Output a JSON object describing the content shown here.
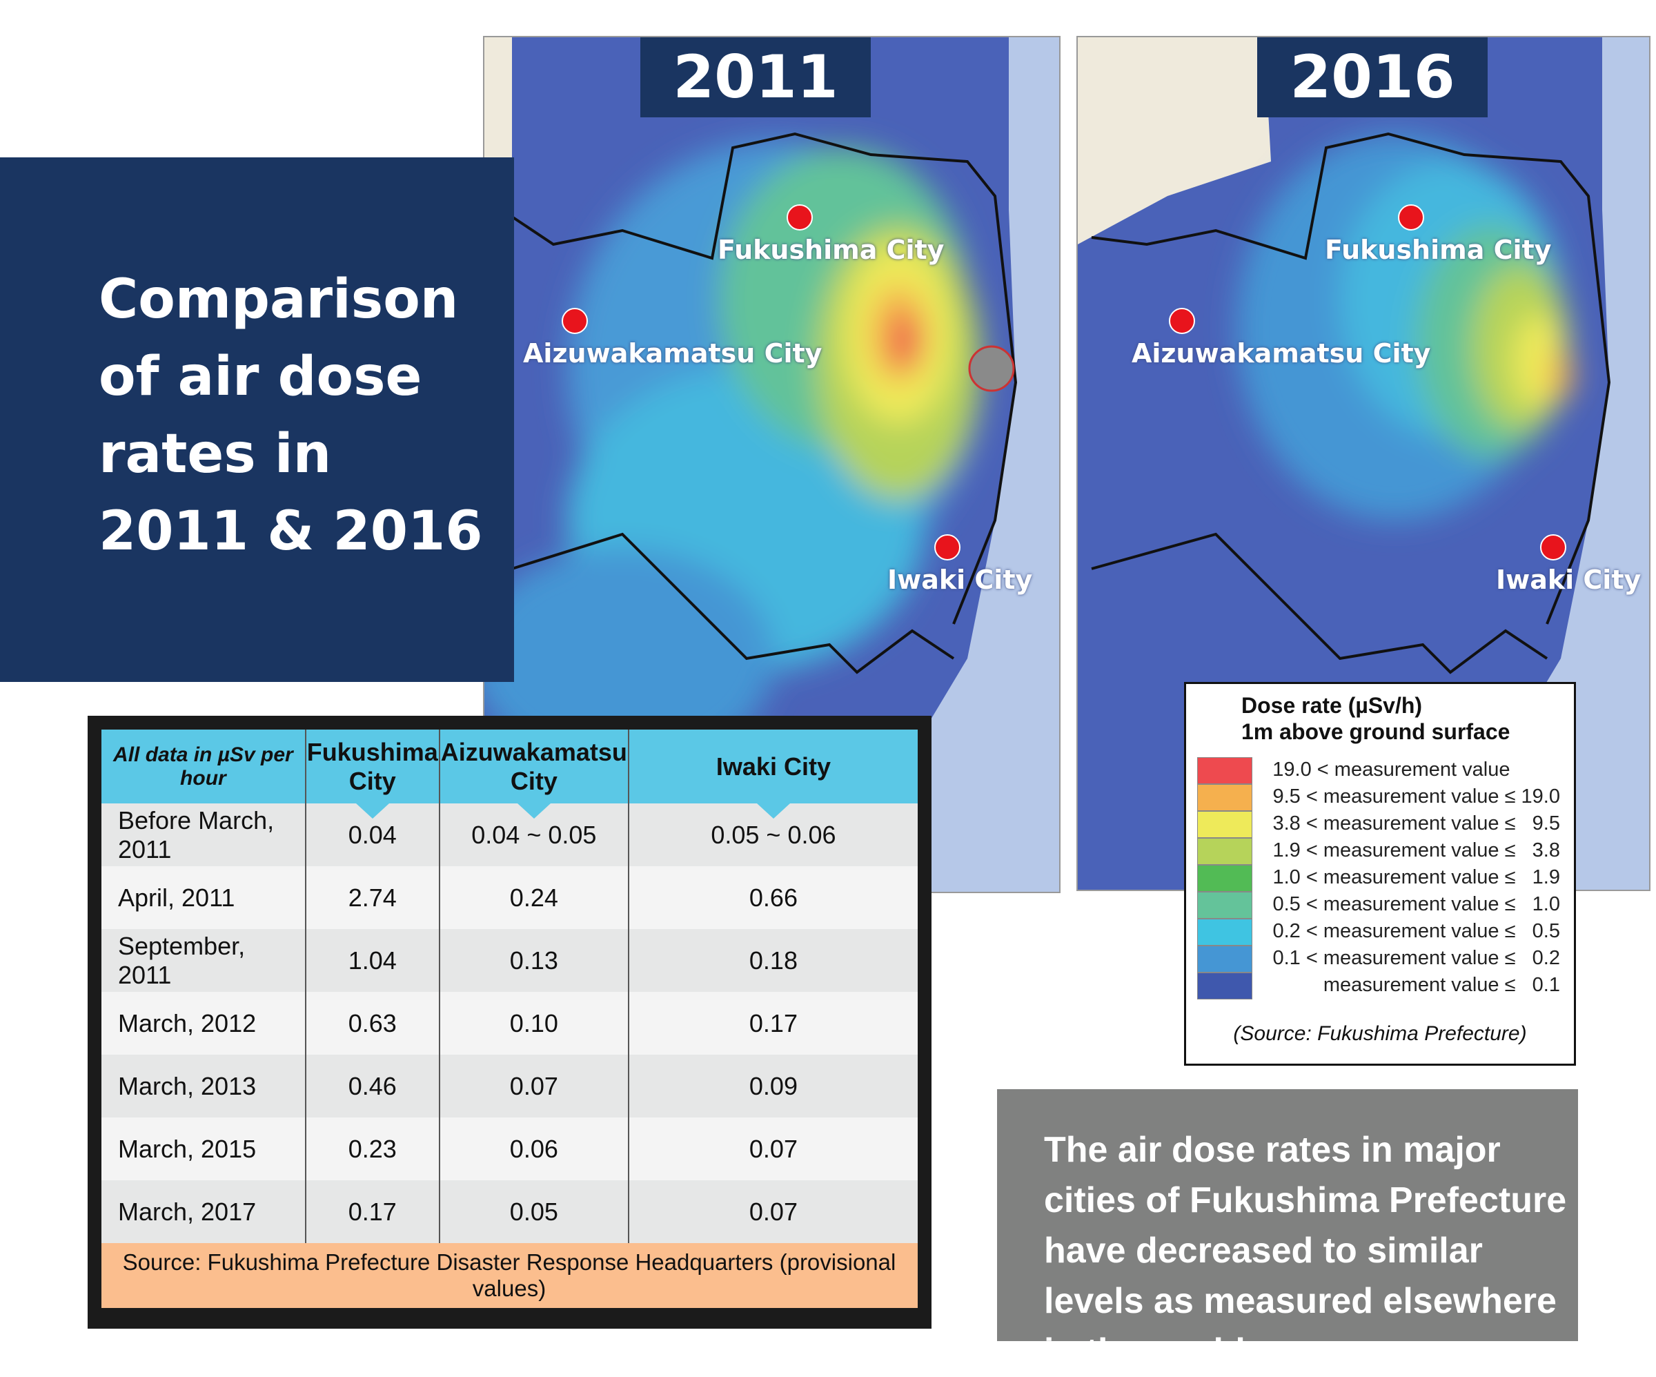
{
  "title": "Comparison of air dose rates in 2011 & 2016",
  "maps": [
    {
      "year": "2011",
      "cities": [
        "Fukushima City",
        "Aizuwakamatsu City",
        "Iwaki City"
      ]
    },
    {
      "year": "2016",
      "cities": [
        "Fukushima City",
        "Aizuwakamatsu City",
        "Iwaki City"
      ]
    }
  ],
  "legend": {
    "title_line1": "Dose rate (µSv/h)",
    "title_line2": "1m above ground surface",
    "items": [
      {
        "label": "19.0 < measurement value         ",
        "color": "#ee4a4f"
      },
      {
        "label": "9.5 < measurement value ≤ 19.0",
        "color": "#f5b04e"
      },
      {
        "label": "3.8 < measurement value ≤   9.5",
        "color": "#eeea5a"
      },
      {
        "label": "1.9 < measurement value ≤   3.8",
        "color": "#b6d35a"
      },
      {
        "label": "1.0 < measurement value ≤   1.9",
        "color": "#52bb55"
      },
      {
        "label": "0.5 < measurement value ≤   1.0",
        "color": "#64c39a"
      },
      {
        "label": "0.2 < measurement value ≤   0.5",
        "color": "#3fc4e2"
      },
      {
        "label": "0.1 < measurement value ≤   0.2",
        "color": "#4596d4"
      },
      {
        "label": "measurement value ≤   0.1",
        "color": "#3f58ad"
      }
    ],
    "source": "(Source: Fukushima Prefecture)"
  },
  "table": {
    "headers": [
      "All data in µSv per hour",
      "Fukushima City",
      "Aizuwakamatsu City",
      "Iwaki City"
    ],
    "rows": [
      [
        "Before March, 2011",
        "0.04",
        "0.04 ~ 0.05",
        "0.05 ~ 0.06"
      ],
      [
        "April, 2011",
        "2.74",
        "0.24",
        "0.66"
      ],
      [
        "September, 2011",
        "1.04",
        "0.13",
        "0.18"
      ],
      [
        "March, 2012",
        "0.63",
        "0.10",
        "0.17"
      ],
      [
        "March, 2013",
        "0.46",
        "0.07",
        "0.09"
      ],
      [
        "March, 2015",
        "0.23",
        "0.06",
        "0.07"
      ],
      [
        "March, 2017",
        "0.17",
        "0.05",
        "0.07"
      ]
    ],
    "source": "Source: Fukushima Prefecture Disaster Response Headquarters (provisional values)"
  },
  "note": "The air dose rates in major cities of Fukushima Prefecture have decreased to similar levels as measured elsewhere in the world.",
  "colors": {
    "navy": "#1a3561",
    "header_cyan": "#5bc8e6",
    "source_orange": "#fbbe8e",
    "note_gray": "#808180",
    "city_dot": "#e8141c"
  }
}
